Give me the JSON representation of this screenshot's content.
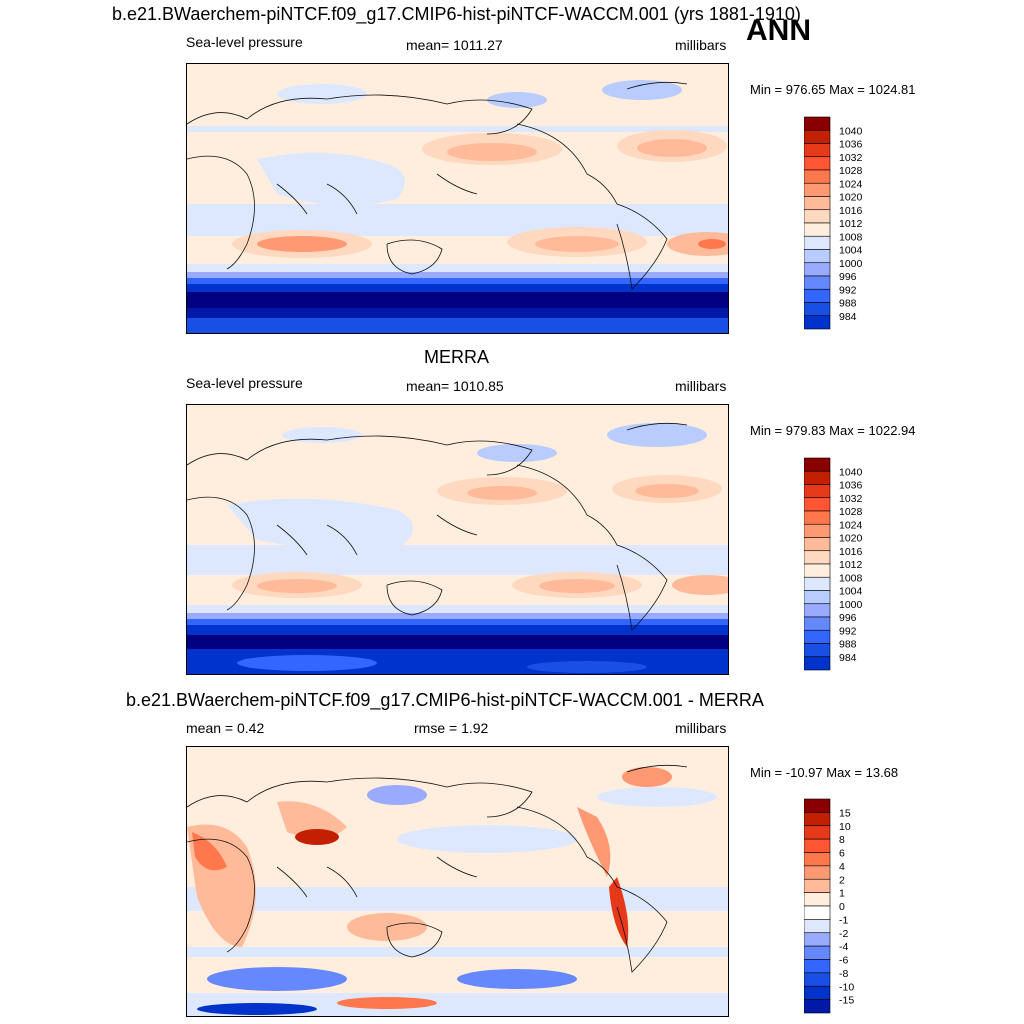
{
  "figure": {
    "title": "b.e21.BWaerchem-piNTCF.f09_g17.CMIP6-hist-piNTCF-WACCM.001 (yrs 1881-1910)",
    "season": "ANN"
  },
  "palette": {
    "sequential": [
      "#000080",
      "#0019a6",
      "#0033cc",
      "#1a4fe6",
      "#3366ff",
      "#6688ff",
      "#99aaff",
      "#b8ccff",
      "#dde8ff",
      "#ffeedd",
      "#ffd9bf",
      "#ffbb99",
      "#ff9973",
      "#ff774d",
      "#ff5533",
      "#e6391a",
      "#c22000",
      "#8a0000"
    ],
    "diverging": [
      "#000080",
      "#0019a6",
      "#0033cc",
      "#1a4fe6",
      "#3366ff",
      "#6688ff",
      "#99aaff",
      "#dde8ff",
      "#ffffff",
      "#ffeedd",
      "#ffbb99",
      "#ff9973",
      "#ff774d",
      "#ff5533",
      "#e6391a",
      "#c22000",
      "#8a0000"
    ],
    "coast": "#111111"
  },
  "chart_data": [
    {
      "type": "heatmap",
      "id": "model",
      "subtitle": "",
      "left_label": "Sea-level pressure",
      "center_label": "mean= 1011.27",
      "units": "millibars",
      "range_text": "Min = 976.65 Max = 1024.81",
      "min": 976.65,
      "max": 1024.81,
      "mean": 1011.27,
      "levels": [
        984,
        988,
        992,
        996,
        1000,
        1004,
        1008,
        1012,
        1016,
        1020,
        1024,
        1028,
        1032,
        1036,
        1040
      ],
      "level_labels": [
        "1040",
        "1036",
        "1032",
        "1028",
        "1024",
        "1020",
        "1016",
        "1012",
        "1008",
        "1004",
        "1000",
        "996",
        "992",
        "988",
        "984"
      ]
    },
    {
      "type": "heatmap",
      "id": "obs",
      "subtitle": "MERRA",
      "left_label": "Sea-level pressure",
      "center_label": "mean= 1010.85",
      "units": "millibars",
      "range_text": "Min = 979.83 Max = 1022.94",
      "min": 979.83,
      "max": 1022.94,
      "mean": 1010.85,
      "levels": [
        984,
        988,
        992,
        996,
        1000,
        1004,
        1008,
        1012,
        1016,
        1020,
        1024,
        1028,
        1032,
        1036,
        1040
      ],
      "level_labels": [
        "1040",
        "1036",
        "1032",
        "1028",
        "1024",
        "1020",
        "1016",
        "1012",
        "1008",
        "1004",
        "1000",
        "996",
        "992",
        "988",
        "984"
      ]
    },
    {
      "type": "heatmap",
      "id": "diff",
      "subtitle": "b.e21.BWaerchem-piNTCF.f09_g17.CMIP6-hist-piNTCF-WACCM.001 - MERRA",
      "left_label": "mean =   0.42",
      "center_label": "rmse =   1.92",
      "units": "millibars",
      "range_text": "Min = -10.97 Max =  13.68",
      "min": -10.97,
      "max": 13.68,
      "mean": 0.42,
      "rmse": 1.92,
      "levels": [
        -15,
        -10,
        -8,
        -6,
        -4,
        -2,
        -1,
        0,
        1,
        2,
        4,
        6,
        8,
        10,
        15
      ],
      "level_labels": [
        "15",
        "10",
        "8",
        "6",
        "4",
        "2",
        "1",
        "0",
        "-1",
        "-2",
        "-4",
        "-6",
        "-8",
        "-10",
        "-15"
      ]
    }
  ]
}
